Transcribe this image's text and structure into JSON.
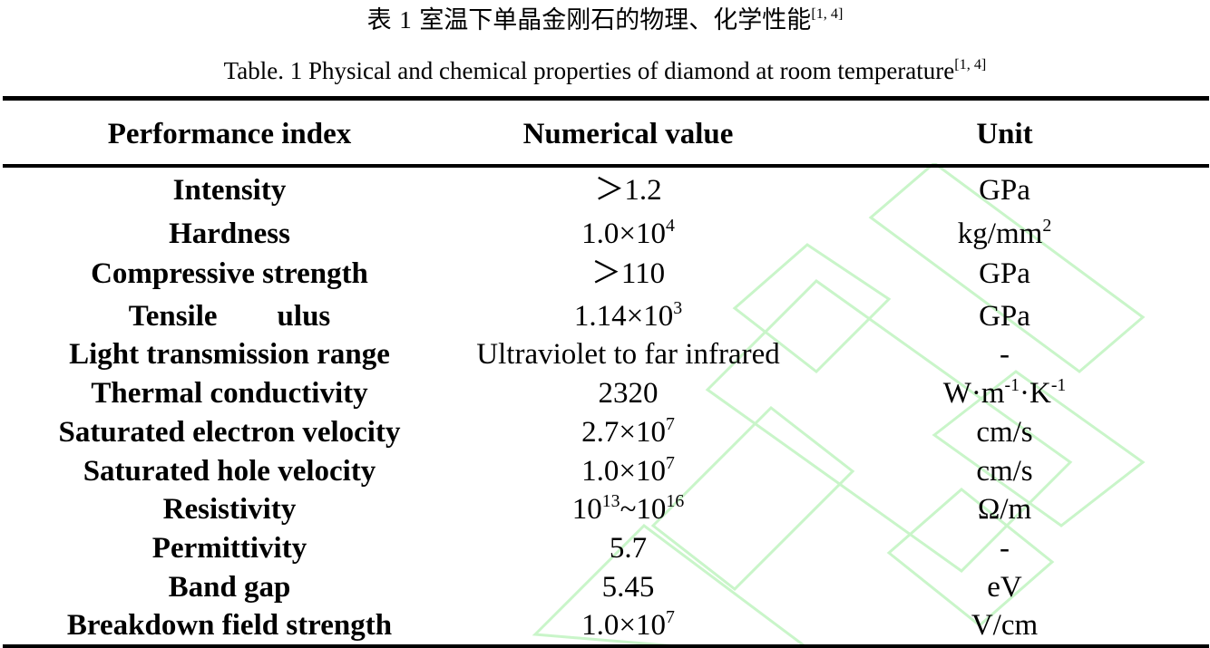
{
  "caption_cn": {
    "prefix": "表",
    "num": "1",
    "text": "室温下单晶金刚石的物理、化学性能",
    "ref": "[1, 4]"
  },
  "caption_en": {
    "text": "Table. 1 Physical and chemical properties of diamond at room temperature",
    "ref": "[1, 4]"
  },
  "table": {
    "headers": [
      "Performance index",
      "Numerical value",
      "Unit"
    ],
    "rows": [
      {
        "index": "Intensity",
        "value": "＞1.2",
        "unit": "GPa"
      },
      {
        "index": "Hardness",
        "value": "1.0×10",
        "value_sup": "4",
        "unit": "kg/mm",
        "unit_sup": "2"
      },
      {
        "index": "Compressive strength",
        "value": "＞110",
        "unit": "GPa"
      },
      {
        "index": "Tensile        ulus",
        "value": "1.14×10",
        "value_sup": "3",
        "unit": "GPa"
      },
      {
        "index": "Light transmission range",
        "value": "Ultraviolet to far infrared",
        "unit": "-"
      },
      {
        "index": "Thermal conductivity",
        "value": "2320",
        "unit_a": "W·m",
        "unit_sup_a": "-1",
        "unit_b": "·K",
        "unit_sup_b": "-1"
      },
      {
        "index": "Saturated electron velocity",
        "value": "2.7×10",
        "value_sup": "7",
        "unit": "cm/s"
      },
      {
        "index": "Saturated hole velocity",
        "value": "1.0×10",
        "value_sup": "7",
        "unit": "cm/s"
      },
      {
        "index": "Resistivity",
        "value_a": "10",
        "value_sup_a": "13",
        "value_b": "~10",
        "value_sup_b": "16",
        "unit": "Ω/m"
      },
      {
        "index": "Permittivity",
        "value": "5.7",
        "unit": "-"
      },
      {
        "index": "Band gap",
        "value": "5.45",
        "unit": "eV"
      },
      {
        "index": "Breakdown field strength",
        "value": "1.0×10",
        "value_sup": "7",
        "unit": "V/cm"
      }
    ]
  },
  "colors": {
    "watermark": "#c9f5c9",
    "rule": "#000000"
  }
}
